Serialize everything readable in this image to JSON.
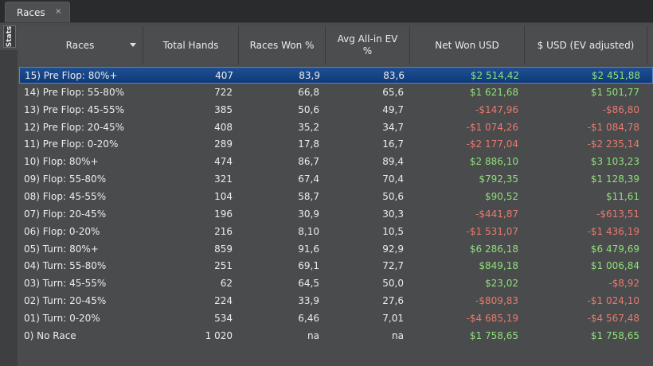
{
  "tab": {
    "label": "Races",
    "close": "×"
  },
  "side_button": "Stats",
  "columns": [
    "Races",
    "Total Hands",
    "Races Won %",
    "Avg All-in EV %",
    "Net Won USD",
    "$ USD (EV adjusted)"
  ],
  "rows": [
    {
      "race": "15) Pre Flop: 80%+",
      "hands": "407",
      "won": "83,9",
      "ev": "83,6",
      "net": "$2 514,42",
      "evadj": "$2 451,88",
      "selected": true
    },
    {
      "race": "14) Pre Flop: 55-80%",
      "hands": "722",
      "won": "66,8",
      "ev": "65,6",
      "net": "$1 621,68",
      "evadj": "$1 501,77"
    },
    {
      "race": "13) Pre Flop: 45-55%",
      "hands": "385",
      "won": "50,6",
      "ev": "49,7",
      "net": "-$147,96",
      "evadj": "-$86,80"
    },
    {
      "race": "12) Pre Flop: 20-45%",
      "hands": "408",
      "won": "35,2",
      "ev": "34,7",
      "net": "-$1 074,26",
      "evadj": "-$1 084,78"
    },
    {
      "race": "11) Pre Flop: 0-20%",
      "hands": "289",
      "won": "17,8",
      "ev": "16,7",
      "net": "-$2 177,04",
      "evadj": "-$2 235,14"
    },
    {
      "race": "10) Flop: 80%+",
      "hands": "474",
      "won": "86,7",
      "ev": "89,4",
      "net": "$2 886,10",
      "evadj": "$3 103,23"
    },
    {
      "race": "09) Flop: 55-80%",
      "hands": "321",
      "won": "67,4",
      "ev": "70,4",
      "net": "$792,35",
      "evadj": "$1 128,39"
    },
    {
      "race": "08) Flop: 45-55%",
      "hands": "104",
      "won": "58,7",
      "ev": "50,6",
      "net": "$90,52",
      "evadj": "$11,61"
    },
    {
      "race": "07) Flop: 20-45%",
      "hands": "196",
      "won": "30,9",
      "ev": "30,3",
      "net": "-$441,87",
      "evadj": "-$613,51"
    },
    {
      "race": "06) Flop: 0-20%",
      "hands": "216",
      "won": "8,10",
      "ev": "10,5",
      "net": "-$1 531,07",
      "evadj": "-$1 436,19"
    },
    {
      "race": "05) Turn: 80%+",
      "hands": "859",
      "won": "91,6",
      "ev": "92,9",
      "net": "$6 286,18",
      "evadj": "$6 479,69"
    },
    {
      "race": "04) Turn: 55-80%",
      "hands": "251",
      "won": "69,1",
      "ev": "72,7",
      "net": "$849,18",
      "evadj": "$1 006,84"
    },
    {
      "race": "03) Turn: 45-55%",
      "hands": "62",
      "won": "64,5",
      "ev": "50,0",
      "net": "$23,02",
      "evadj": "-$8,92"
    },
    {
      "race": "02) Turn: 20-45%",
      "hands": "224",
      "won": "33,9",
      "ev": "27,6",
      "net": "-$809,83",
      "evadj": "-$1 024,10"
    },
    {
      "race": "01) Turn: 0-20%",
      "hands": "534",
      "won": "6,46",
      "ev": "7,01",
      "net": "-$4 685,19",
      "evadj": "-$4 567,48"
    },
    {
      "race": "0) No Race",
      "hands": "1 020",
      "won": "na",
      "ev": "na",
      "net": "$1 758,65",
      "evadj": "$1 758,65"
    }
  ],
  "colors": {
    "positive": "#8fe07a",
    "negative": "#e87a6e",
    "selection": "#1e4f94"
  }
}
